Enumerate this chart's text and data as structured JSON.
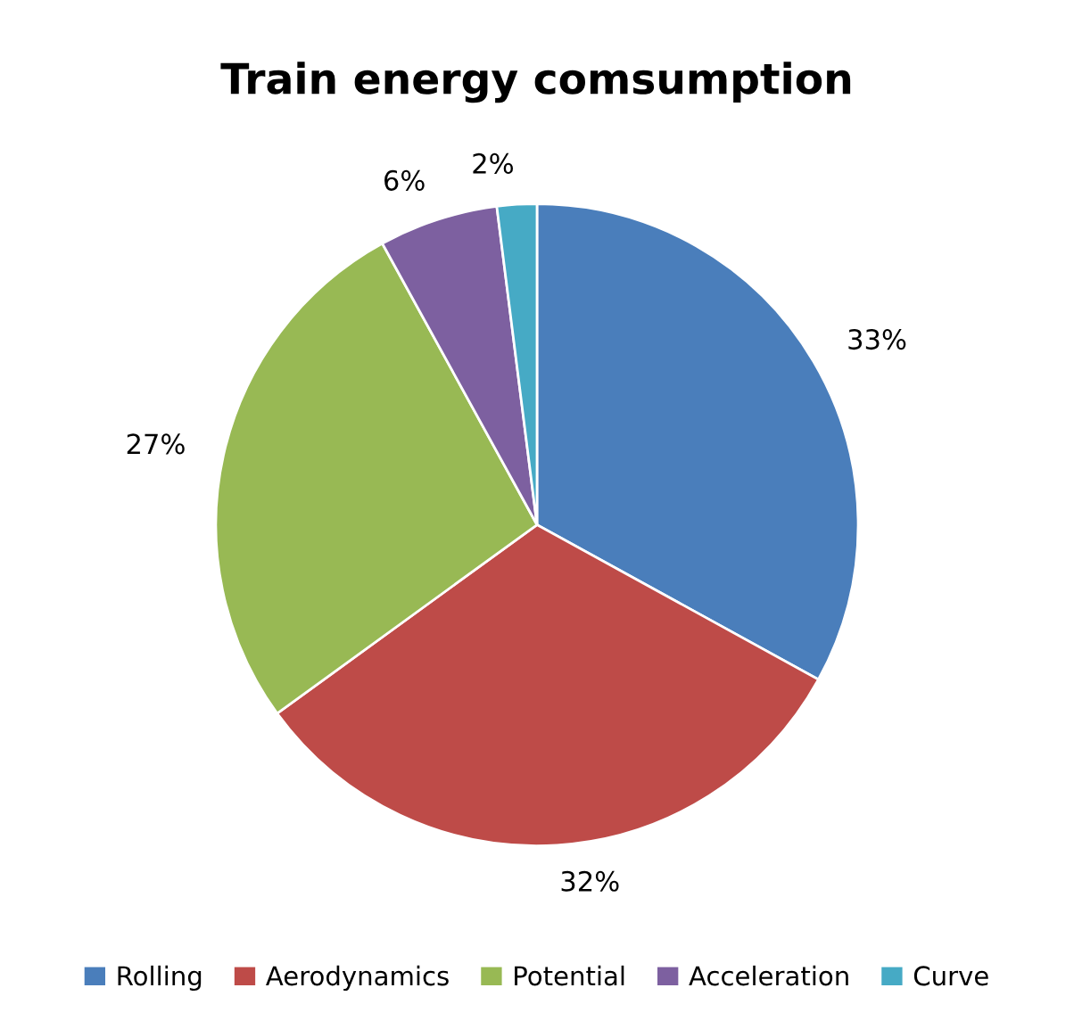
{
  "chart_data": {
    "type": "pie",
    "title": "Train energy comsumption",
    "categories": [
      "Rolling",
      "Aerodynamics",
      "Potential",
      "Acceleration",
      "Curve"
    ],
    "values": [
      33,
      32,
      27,
      6,
      2
    ],
    "colors": [
      "#4a7ebb",
      "#be4b48",
      "#98b954",
      "#7d60a0",
      "#46aac5"
    ],
    "value_labels": [
      "33%",
      "32%",
      "27%",
      "6%",
      "2%"
    ],
    "legend": "bottom"
  }
}
